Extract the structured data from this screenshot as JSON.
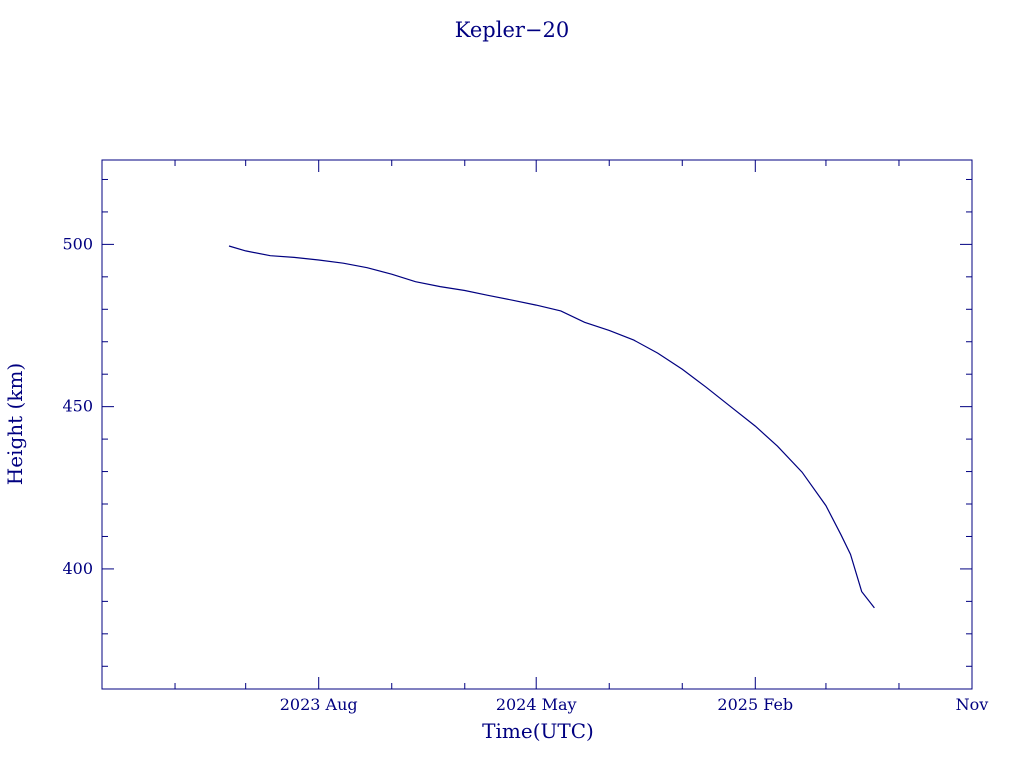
{
  "chart_data": {
    "type": "line",
    "title": "Kepler−20",
    "xlabel": "Time(UTC)",
    "ylabel": "Height (km)",
    "x_ticks": [
      "2023 Aug",
      "2024 May",
      "2025 Feb",
      "Nov"
    ],
    "y_ticks": [
      400,
      450,
      500
    ],
    "ylim": [
      363,
      526
    ],
    "xlim": [
      "2022-11-01",
      "2025-11-01"
    ],
    "grid": false,
    "color": "#000080",
    "series": [
      {
        "x": [
          "2023-04-10",
          "2023-05-01",
          "2023-06-01",
          "2023-07-01",
          "2023-08-01",
          "2023-09-01",
          "2023-10-01",
          "2023-11-01",
          "2023-12-01",
          "2024-01-01",
          "2024-02-01",
          "2024-03-01",
          "2024-04-01",
          "2024-05-01",
          "2024-06-01",
          "2024-07-01",
          "2024-08-01",
          "2024-09-01",
          "2024-10-01",
          "2024-11-01",
          "2024-12-01",
          "2025-01-01",
          "2025-02-01",
          "2025-03-01",
          "2025-04-01",
          "2025-05-01",
          "2025-05-20",
          "2025-06-01",
          "2025-06-15",
          "2025-07-01"
        ],
        "values": [
          499.5,
          498,
          496.5,
          496,
          495.2,
          494.2,
          492.8,
          490.8,
          488.5,
          487,
          485.8,
          484.3,
          482.8,
          481.3,
          479.5,
          476,
          473.5,
          470.5,
          466.5,
          461.5,
          456,
          450,
          444,
          437.8,
          429.8,
          419.5,
          410.5,
          404.5,
          393,
          388
        ]
      }
    ]
  }
}
